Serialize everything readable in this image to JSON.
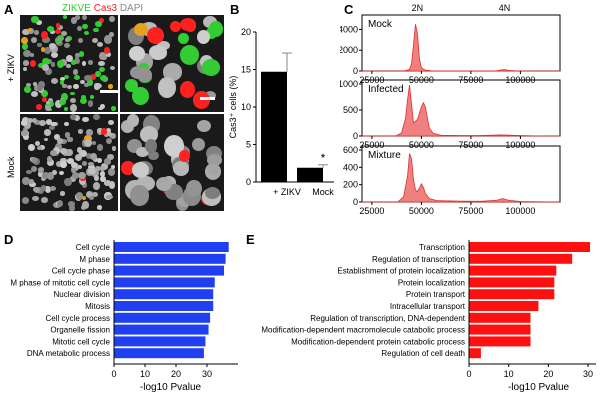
{
  "panels": {
    "a": {
      "letter": "A",
      "header": {
        "green": "ZIKVE",
        "red": "Cas3",
        "gray": "DAPI"
      },
      "rows": [
        "+ ZIKV",
        "Mock"
      ]
    },
    "b": {
      "letter": "B"
    },
    "c": {
      "letter": "C"
    },
    "d": {
      "letter": "D"
    },
    "e": {
      "letter": "E"
    }
  },
  "colors": {
    "green": "#33cc33",
    "red": "#ff2020",
    "histogram_fill": "#f08080",
    "histogram_line": "#e03030",
    "bar_blue": "#1f3ff0",
    "bar_red": "#ff1010",
    "bar_black": "#000000"
  },
  "chart_data": [
    {
      "id": "B",
      "type": "bar",
      "categories": [
        "+ ZIKV",
        "Mock"
      ],
      "values": [
        14.7,
        1.9
      ],
      "errors": [
        2.5,
        0.4
      ],
      "ylabel": "Cas3⁺ cells (%)",
      "ylim": [
        0,
        20
      ],
      "yticks": [
        0,
        5,
        10,
        15,
        20
      ],
      "annotation": "*"
    },
    {
      "id": "C",
      "type": "area",
      "header_labels": [
        "2N",
        "4N"
      ],
      "header_positions": [
        48000,
        92000
      ],
      "xlim": [
        20000,
        120000
      ],
      "xticks": [
        25000,
        50000,
        75000,
        100000
      ],
      "subplots": [
        {
          "name": "Mock",
          "ylim": [
            0,
            5000
          ],
          "yticks": [
            0,
            2000,
            4000
          ],
          "x": [
            20000,
            40000,
            42000,
            44000,
            45000,
            46000,
            47000,
            48000,
            49000,
            50000,
            52000,
            55000,
            60000,
            70000,
            80000,
            88000,
            90000,
            92000,
            94000,
            98000,
            110000,
            120000
          ],
          "y": [
            0,
            0,
            30,
            150,
            700,
            2500,
            4500,
            3600,
            1200,
            300,
            80,
            20,
            10,
            5,
            5,
            20,
            100,
            140,
            60,
            10,
            0,
            0
          ]
        },
        {
          "name": "Infected",
          "ylim": [
            0,
            1000
          ],
          "yticks": [
            0,
            500,
            1000
          ],
          "x": [
            20000,
            37000,
            40000,
            42000,
            43000,
            44000,
            45000,
            46000,
            48000,
            50000,
            51000,
            52000,
            53000,
            54000,
            56000,
            60000,
            70000,
            80000,
            90000,
            100000,
            110000,
            120000
          ],
          "y": [
            0,
            0,
            60,
            350,
            700,
            980,
            620,
            250,
            320,
            560,
            640,
            560,
            350,
            150,
            50,
            15,
            10,
            8,
            20,
            10,
            0,
            0
          ]
        },
        {
          "name": "Mixture",
          "ylim": [
            0,
            600
          ],
          "yticks": [
            0,
            200,
            400,
            600
          ],
          "x": [
            20000,
            38000,
            41000,
            43000,
            44000,
            45000,
            46000,
            47000,
            48000,
            49000,
            50000,
            51000,
            52000,
            54000,
            58000,
            70000,
            80000,
            88000,
            91000,
            94000,
            100000,
            120000
          ],
          "y": [
            0,
            0,
            60,
            300,
            560,
            500,
            260,
            140,
            120,
            160,
            210,
            170,
            100,
            40,
            15,
            10,
            8,
            20,
            40,
            20,
            5,
            0
          ]
        }
      ]
    },
    {
      "id": "D",
      "type": "bar",
      "orientation": "horizontal",
      "categories": [
        "Cell cycle",
        "M phase",
        "Cell cycle phase",
        "M phase of mitotic cell cycle",
        "Nuclear division",
        "Mitosis",
        "Cell cycle process",
        "Organelle fission",
        "Mitotic cell cycle",
        "DNA metabolic process"
      ],
      "values": [
        37,
        36,
        35.5,
        32.5,
        32,
        32,
        31,
        30.5,
        29.5,
        29
      ],
      "xlabel": "-log10 Pvalue",
      "xlim": [
        0,
        40
      ],
      "xticks": [
        0,
        10,
        20,
        30
      ]
    },
    {
      "id": "E",
      "type": "bar",
      "orientation": "horizontal",
      "categories": [
        "Transcription",
        "Regulation of transcription",
        "Establishment of protein localization",
        "Protein localization",
        "Protein transport",
        "Intracellular transport",
        "Regulation of transcription, DNA-dependent",
        "Modification-dependent macromolecule catabolic process",
        "Modification-dependent protein catabolic process",
        "Regulation of cell death"
      ],
      "values": [
        30.5,
        26,
        22,
        21.5,
        21.5,
        17.5,
        15.5,
        15.5,
        15.5,
        3
      ],
      "xlabel": "-log10 Pvalue",
      "xlim": [
        0,
        32
      ],
      "xticks": [
        0,
        10,
        20,
        30
      ]
    }
  ]
}
